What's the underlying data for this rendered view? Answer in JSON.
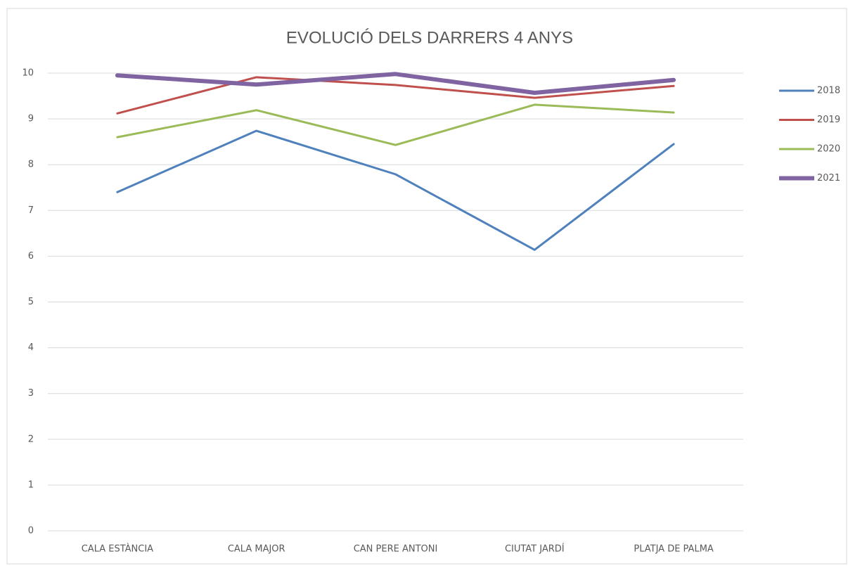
{
  "chart_data": {
    "type": "line",
    "title": "EVOLUCIÓ DELS DARRERS 4 ANYS",
    "categories": [
      "CALA ESTÀNCIA",
      "CALA MAJOR",
      "CAN PERE ANTONI",
      "CIUTAT JARDÍ",
      "PLATJA DE PALMA"
    ],
    "series": [
      {
        "name": "2018",
        "color": "#4f81bd",
        "values": [
          7.4,
          8.74,
          7.79,
          6.14,
          8.45
        ]
      },
      {
        "name": "2019",
        "color": "#c0504d",
        "values": [
          9.12,
          9.91,
          9.74,
          9.46,
          9.72
        ]
      },
      {
        "name": "2020",
        "color": "#9bbb59",
        "values": [
          8.6,
          9.19,
          8.43,
          9.31,
          9.14
        ]
      },
      {
        "name": "2021",
        "color": "#8064a2",
        "values": [
          9.95,
          9.75,
          9.98,
          9.57,
          9.85
        ]
      }
    ],
    "ylim": [
      0,
      10
    ],
    "yticks": [
      0,
      1,
      2,
      3,
      4,
      5,
      6,
      7,
      8,
      9,
      10
    ],
    "grid": true,
    "legend": "right"
  }
}
